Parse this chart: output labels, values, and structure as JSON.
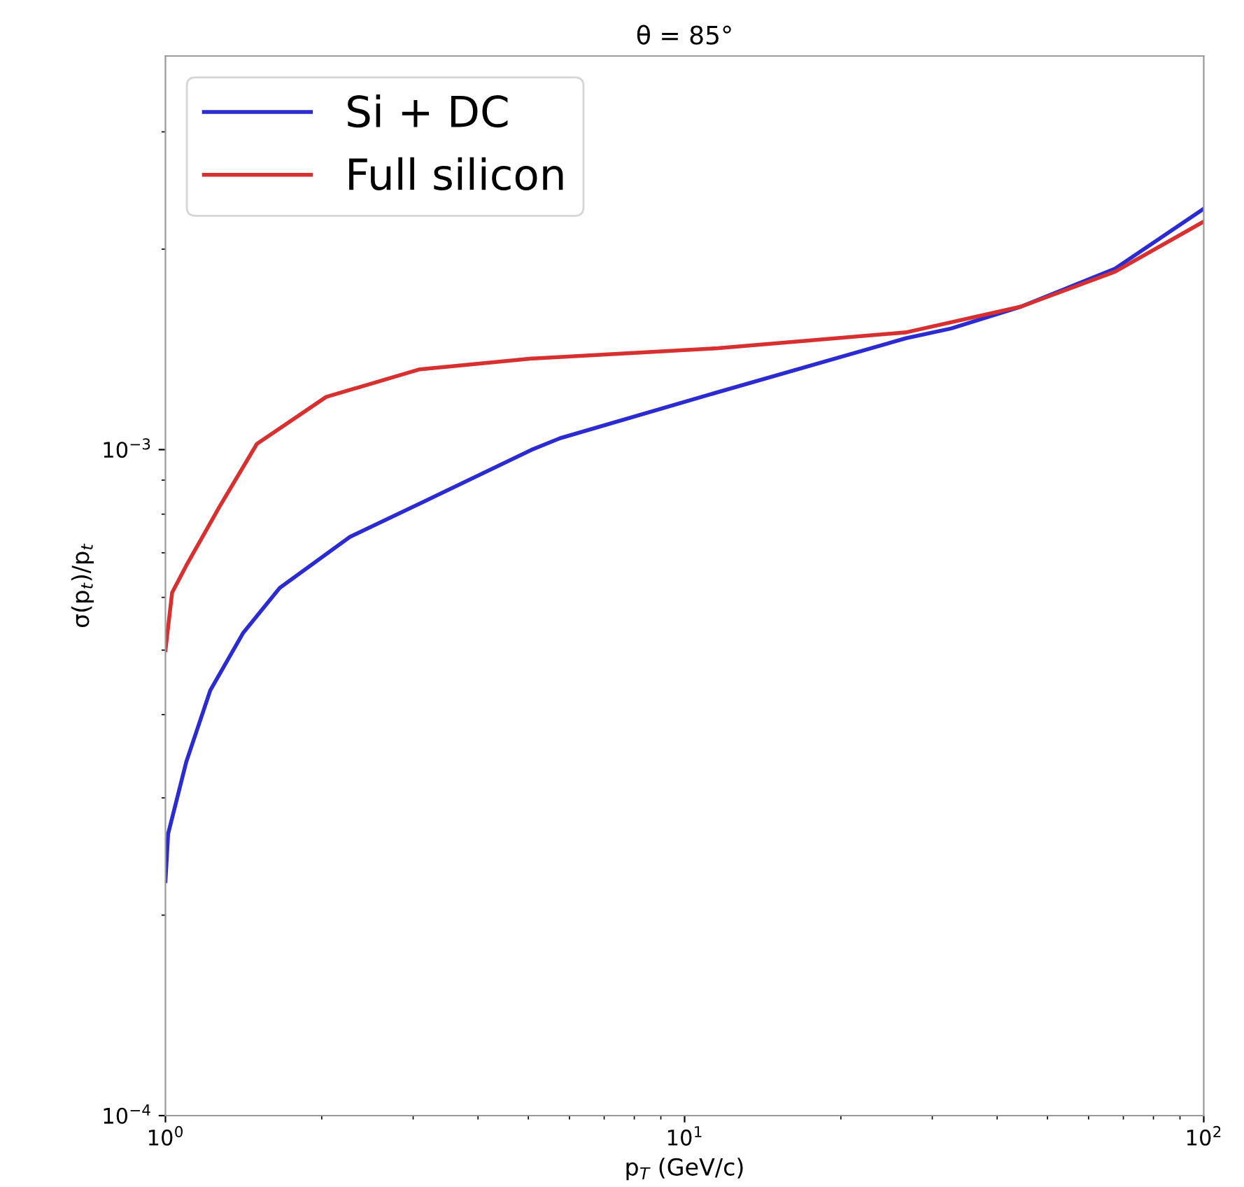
{
  "chart_data": {
    "type": "line",
    "title": "θ = 85°",
    "xlabel": "p$_{T}$ (GeV/c)",
    "ylabel": "σ(p$_{t}$)/p$_{t}$",
    "log": "xy",
    "xlim": [
      1,
      100
    ],
    "ylim": [
      0.0001,
      0.0039
    ],
    "xticks": [
      {
        "value": 1,
        "label": "10$^{0}$"
      },
      {
        "value": 2,
        "label": null
      },
      {
        "value": 3,
        "label": null
      },
      {
        "value": 4,
        "label": null
      },
      {
        "value": 5,
        "label": null
      },
      {
        "value": 6,
        "label": null
      },
      {
        "value": 7,
        "label": null
      },
      {
        "value": 8,
        "label": null
      },
      {
        "value": 9,
        "label": null
      },
      {
        "value": 10,
        "label": "10$^{1}$"
      },
      {
        "value": 20,
        "label": null
      },
      {
        "value": 30,
        "label": null
      },
      {
        "value": 40,
        "label": null
      },
      {
        "value": 50,
        "label": null
      },
      {
        "value": 60,
        "label": null
      },
      {
        "value": 70,
        "label": null
      },
      {
        "value": 80,
        "label": null
      },
      {
        "value": 90,
        "label": null
      },
      {
        "value": 100,
        "label": "10$^{2}$"
      }
    ],
    "yticks": [
      {
        "value": 0.0001,
        "label": "10$^{−4}$"
      },
      {
        "value": 0.0002,
        "label": null
      },
      {
        "value": 0.0003,
        "label": null
      },
      {
        "value": 0.0004,
        "label": null
      },
      {
        "value": 0.0005,
        "label": null
      },
      {
        "value": 0.0006,
        "label": null
      },
      {
        "value": 0.0007,
        "label": null
      },
      {
        "value": 0.0008,
        "label": null
      },
      {
        "value": 0.0009,
        "label": null
      },
      {
        "value": 0.001,
        "label": "10$^{−3}$"
      },
      {
        "value": 0.002,
        "label": null
      },
      {
        "value": 0.003,
        "label": null
      }
    ],
    "legend": "top left",
    "grid": false,
    "marker": "none",
    "line_style": "solid",
    "series": [
      {
        "name": "Si + DC",
        "color": "#2b2bd0",
        "x": [
          1,
          1.012,
          1.097,
          1.22,
          1.41,
          1.66,
          2.27,
          3.09,
          5.08,
          5.75,
          11.6,
          26.7,
          32.6,
          44.5,
          67.5,
          100
        ],
        "values": [
          0.000225,
          0.000265,
          0.00034,
          0.000435,
          0.00053,
          0.00062,
          0.00074,
          0.00083,
          0.001,
          0.00104,
          0.00122,
          0.00147,
          0.00152,
          0.00164,
          0.00187,
          0.0023
        ]
      },
      {
        "name": "Full silicon",
        "color": "#d63030",
        "x": [
          1,
          1.03,
          1.097,
          1.27,
          1.5,
          2.04,
          3.09,
          5.08,
          11.6,
          26.7,
          44.5,
          67.5,
          100
        ],
        "values": [
          0.0005,
          0.00061,
          0.00067,
          0.00082,
          0.00102,
          0.0012,
          0.00132,
          0.00137,
          0.00142,
          0.0015,
          0.00164,
          0.00185,
          0.0022
        ]
      }
    ]
  }
}
